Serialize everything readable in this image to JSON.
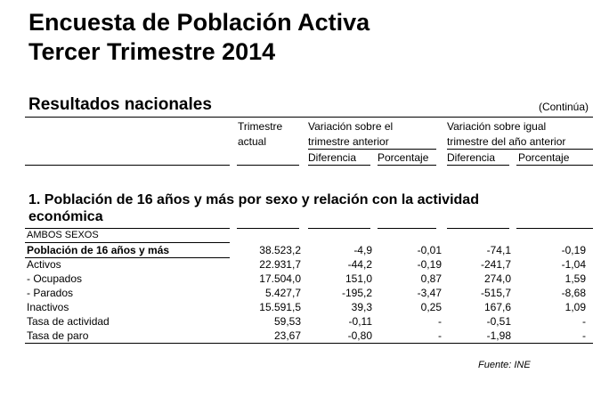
{
  "title_line1": "Encuesta de Población Activa",
  "title_line2": "Tercer Trimestre 2014",
  "subtitle": "Resultados nacionales",
  "continua": "(Continúa)",
  "headers": {
    "trimestre_actual_1": "Trimestre",
    "trimestre_actual_2": "actual",
    "var_anterior_1": "Variación sobre el",
    "var_anterior_2": "trimestre anterior",
    "var_igual_1": "Variación sobre igual",
    "var_igual_2": "trimestre del año anterior",
    "diferencia": "Diferencia",
    "porcentaje": "Porcentaje"
  },
  "section_title": "1. Población de 16 años y más por sexo y relación con la actividad económica",
  "group_label": "AMBOS SEXOS",
  "rows": [
    {
      "label": "Población de 16 años y más",
      "actual": "38.523,2",
      "dif_ant": "-4,9",
      "pct_ant": "-0,01",
      "dif_igual": "-74,1",
      "pct_igual": "-0,19"
    },
    {
      "label": "Activos",
      "actual": "22.931,7",
      "dif_ant": "-44,2",
      "pct_ant": "-0,19",
      "dif_igual": "-241,7",
      "pct_igual": "-1,04"
    },
    {
      "label": "- Ocupados",
      "actual": "17.504,0",
      "dif_ant": "151,0",
      "pct_ant": "0,87",
      "dif_igual": "274,0",
      "pct_igual": "1,59"
    },
    {
      "label": "- Parados",
      "actual": "5.427,7",
      "dif_ant": "-195,2",
      "pct_ant": "-3,47",
      "dif_igual": "-515,7",
      "pct_igual": "-8,68"
    },
    {
      "label": "Inactivos",
      "actual": "15.591,5",
      "dif_ant": "39,3",
      "pct_ant": "0,25",
      "dif_igual": "167,6",
      "pct_igual": "1,09"
    },
    {
      "label": "Tasa de actividad",
      "actual": "59,53",
      "dif_ant": "-0,11",
      "pct_ant": "-",
      "dif_igual": "-0,51",
      "pct_igual": "-"
    },
    {
      "label": "Tasa de paro",
      "actual": "23,67",
      "dif_ant": "-0,80",
      "pct_ant": "-",
      "dif_igual": "-1,98",
      "pct_igual": "-"
    }
  ],
  "fuente": "Fuente: INE"
}
